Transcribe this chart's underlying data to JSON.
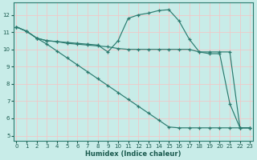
{
  "xlabel": "Humidex (Indice chaleur)",
  "bg_color": "#c8ece8",
  "grid_color": "#f0c8c8",
  "line_color": "#2a7a6e",
  "xlim": [
    -0.3,
    23.3
  ],
  "ylim": [
    4.7,
    12.7
  ],
  "yticks": [
    5,
    6,
    7,
    8,
    9,
    10,
    11,
    12
  ],
  "xticks": [
    0,
    1,
    2,
    3,
    4,
    5,
    6,
    7,
    8,
    9,
    10,
    11,
    12,
    13,
    14,
    15,
    16,
    17,
    18,
    19,
    20,
    21,
    22,
    23
  ],
  "line1_x": [
    0,
    1,
    2,
    3,
    4,
    5,
    6,
    7,
    8,
    9,
    10,
    11,
    12,
    13,
    14,
    15,
    16,
    17,
    18,
    19,
    20,
    21,
    22,
    23
  ],
  "line1_y": [
    11.3,
    11.05,
    10.65,
    10.5,
    10.45,
    10.4,
    10.35,
    10.3,
    10.25,
    9.85,
    10.5,
    11.8,
    12.0,
    12.1,
    12.25,
    12.3,
    11.65,
    10.6,
    9.85,
    9.75,
    9.75,
    6.85,
    5.45,
    5.45
  ],
  "line2_x": [
    0,
    1,
    2,
    3,
    4,
    5,
    6,
    7,
    8,
    9,
    10,
    11,
    12,
    13,
    14,
    15,
    16,
    17,
    18,
    19,
    20,
    21,
    22,
    23
  ],
  "line2_y": [
    11.3,
    11.05,
    10.65,
    10.3,
    9.9,
    9.5,
    9.1,
    8.7,
    8.3,
    7.9,
    7.5,
    7.1,
    6.7,
    6.3,
    5.9,
    5.5,
    5.45,
    5.45,
    5.45,
    5.45,
    5.45,
    5.45,
    5.45,
    5.45
  ],
  "line3_x": [
    0,
    1,
    2,
    3,
    4,
    5,
    6,
    7,
    8,
    9,
    10,
    11,
    12,
    13,
    14,
    15,
    16,
    17,
    18,
    19,
    20,
    21,
    22,
    23
  ],
  "line3_y": [
    11.3,
    11.05,
    10.65,
    10.5,
    10.45,
    10.35,
    10.3,
    10.25,
    10.2,
    10.15,
    10.05,
    10.0,
    10.0,
    10.0,
    10.0,
    10.0,
    10.0,
    10.0,
    9.85,
    9.85,
    9.85,
    9.85,
    5.45,
    5.45
  ]
}
